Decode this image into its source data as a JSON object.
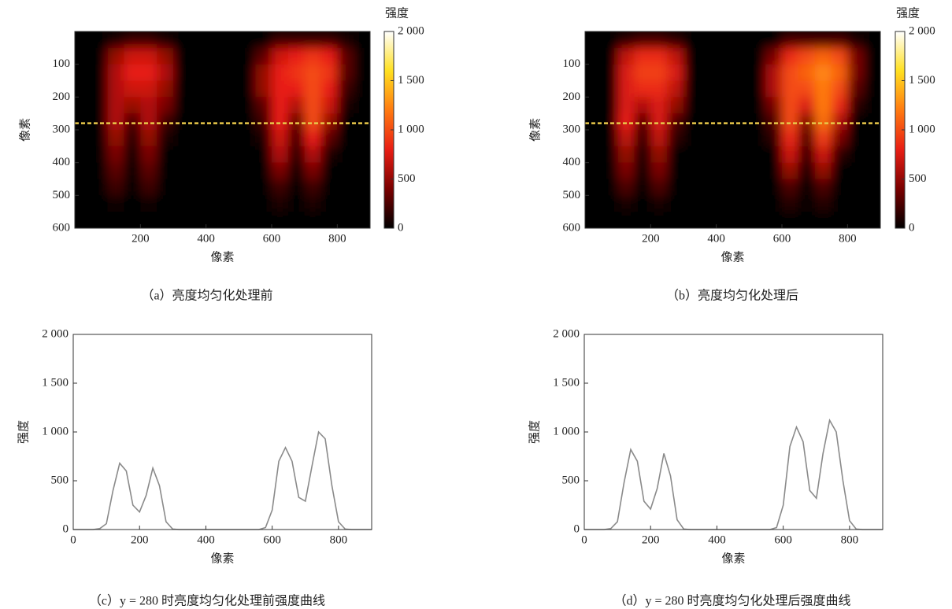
{
  "chart_data": [
    {
      "type": "heatmap",
      "caption": "（a）亮度均匀化处理前",
      "xlabel": "像素",
      "ylabel": "像素",
      "xlim": [
        0,
        900
      ],
      "xticks": [
        200,
        400,
        600,
        800
      ],
      "ylim": [
        0,
        600
      ],
      "y_inverted": true,
      "yticks": [
        100,
        200,
        300,
        400,
        500,
        600
      ],
      "x": [
        25,
        75,
        125,
        175,
        225,
        275,
        325,
        375,
        425,
        475,
        525,
        575,
        625,
        675,
        725,
        775,
        825,
        875
      ],
      "y": [
        25,
        75,
        125,
        175,
        225,
        275,
        325,
        375,
        425,
        475,
        525,
        575
      ],
      "z": [
        [
          0,
          0,
          100,
          200,
          200,
          100,
          0,
          0,
          0,
          0,
          0,
          0,
          200,
          200,
          200,
          200,
          100,
          0
        ],
        [
          0,
          0,
          500,
          700,
          700,
          500,
          0,
          0,
          0,
          0,
          0,
          300,
          700,
          800,
          900,
          800,
          300,
          0
        ],
        [
          0,
          0,
          600,
          800,
          800,
          600,
          0,
          0,
          0,
          0,
          0,
          500,
          800,
          900,
          1000,
          900,
          300,
          0
        ],
        [
          0,
          0,
          600,
          700,
          700,
          500,
          0,
          0,
          0,
          0,
          0,
          500,
          800,
          800,
          1000,
          800,
          200,
          0
        ],
        [
          0,
          0,
          600,
          500,
          600,
          400,
          0,
          0,
          0,
          0,
          0,
          300,
          800,
          600,
          1000,
          700,
          100,
          0
        ],
        [
          0,
          0,
          600,
          200,
          600,
          200,
          0,
          0,
          0,
          0,
          0,
          200,
          800,
          300,
          1000,
          500,
          0,
          0
        ],
        [
          0,
          0,
          500,
          100,
          500,
          100,
          0,
          0,
          0,
          0,
          0,
          100,
          700,
          200,
          800,
          300,
          0,
          0
        ],
        [
          0,
          0,
          400,
          0,
          400,
          0,
          0,
          0,
          0,
          0,
          0,
          0,
          600,
          100,
          600,
          100,
          0,
          0
        ],
        [
          0,
          0,
          300,
          0,
          300,
          0,
          0,
          0,
          0,
          0,
          0,
          0,
          400,
          0,
          400,
          0,
          0,
          0
        ],
        [
          0,
          0,
          200,
          0,
          200,
          0,
          0,
          0,
          0,
          0,
          0,
          0,
          200,
          0,
          200,
          0,
          0,
          0
        ],
        [
          0,
          0,
          50,
          0,
          50,
          0,
          0,
          0,
          0,
          0,
          0,
          0,
          100,
          0,
          100,
          0,
          0,
          0
        ],
        [
          0,
          0,
          0,
          0,
          0,
          0,
          0,
          0,
          0,
          0,
          0,
          0,
          0,
          0,
          0,
          0,
          0,
          0
        ]
      ],
      "hline": 280,
      "hline_color": "#e8c84a",
      "colormap": [
        "#000000",
        "#7a0000",
        "#e81e14",
        "#ff7a10",
        "#ffe020",
        "#ffffff"
      ],
      "colorbar": {
        "label": "强度",
        "lim": [
          0,
          2000
        ],
        "ticks": [
          0,
          500,
          {
            "value": 1000,
            "label": "1 000"
          },
          {
            "value": 1500,
            "label": "1 500"
          },
          {
            "value": 2000,
            "label": "2 000"
          }
        ]
      }
    },
    {
      "type": "heatmap",
      "caption": "（b）亮度均匀化处理后",
      "xlabel": "像素",
      "ylabel": "像素",
      "xlim": [
        0,
        900
      ],
      "xticks": [
        200,
        400,
        600,
        800
      ],
      "ylim": [
        0,
        600
      ],
      "y_inverted": true,
      "yticks": [
        100,
        200,
        300,
        400,
        500,
        600
      ],
      "x": [
        25,
        75,
        125,
        175,
        225,
        275,
        325,
        375,
        425,
        475,
        525,
        575,
        625,
        675,
        725,
        775,
        825,
        875
      ],
      "y": [
        25,
        75,
        125,
        175,
        225,
        275,
        325,
        375,
        425,
        475,
        525,
        575
      ],
      "z": [
        [
          0,
          0,
          150,
          250,
          250,
          150,
          0,
          0,
          0,
          0,
          0,
          0,
          250,
          250,
          250,
          250,
          100,
          0
        ],
        [
          0,
          0,
          650,
          850,
          850,
          650,
          0,
          0,
          0,
          0,
          0,
          400,
          850,
          1000,
          1100,
          1000,
          400,
          0
        ],
        [
          0,
          0,
          750,
          950,
          950,
          750,
          0,
          0,
          0,
          0,
          0,
          600,
          1000,
          1100,
          1250,
          1100,
          400,
          0
        ],
        [
          0,
          0,
          750,
          850,
          850,
          650,
          0,
          0,
          0,
          0,
          0,
          600,
          1000,
          1000,
          1200,
          1000,
          300,
          0
        ],
        [
          0,
          0,
          750,
          600,
          750,
          500,
          0,
          0,
          0,
          0,
          0,
          400,
          1000,
          750,
          1200,
          850,
          150,
          0
        ],
        [
          0,
          0,
          800,
          250,
          750,
          250,
          0,
          0,
          0,
          0,
          0,
          250,
          1000,
          400,
          1150,
          600,
          0,
          0
        ],
        [
          0,
          0,
          650,
          150,
          650,
          150,
          0,
          0,
          0,
          0,
          0,
          150,
          850,
          250,
          950,
          400,
          0,
          0
        ],
        [
          0,
          0,
          500,
          0,
          500,
          0,
          0,
          0,
          0,
          0,
          0,
          0,
          700,
          150,
          700,
          150,
          0,
          0
        ],
        [
          0,
          0,
          400,
          0,
          400,
          0,
          0,
          0,
          0,
          0,
          0,
          0,
          500,
          0,
          500,
          0,
          0,
          0
        ],
        [
          0,
          0,
          250,
          0,
          250,
          0,
          0,
          0,
          0,
          0,
          0,
          0,
          250,
          0,
          250,
          0,
          0,
          0
        ],
        [
          0,
          0,
          80,
          0,
          80,
          0,
          0,
          0,
          0,
          0,
          0,
          0,
          120,
          0,
          120,
          0,
          0,
          0
        ],
        [
          0,
          0,
          0,
          0,
          0,
          0,
          0,
          0,
          0,
          0,
          0,
          0,
          0,
          0,
          0,
          0,
          0,
          0
        ]
      ],
      "hline": 280,
      "hline_color": "#e8c84a",
      "colormap": [
        "#000000",
        "#7a0000",
        "#e81e14",
        "#ff7a10",
        "#ffe020",
        "#ffffff"
      ],
      "colorbar": {
        "label": "强度",
        "lim": [
          0,
          2000
        ],
        "ticks": [
          0,
          500,
          {
            "value": 1000,
            "label": "1 000"
          },
          {
            "value": 1500,
            "label": "1 500"
          },
          {
            "value": 2000,
            "label": "2 000"
          }
        ]
      }
    },
    {
      "type": "line",
      "caption": "（c）y = 280 时亮度均匀化处理前强度曲线",
      "xlabel": "像素",
      "ylabel": "强度",
      "xlim": [
        0,
        900
      ],
      "xticks": [
        0,
        200,
        400,
        600,
        800
      ],
      "ylim": [
        0,
        2000
      ],
      "yticks": [
        0,
        500,
        {
          "value": 1000,
          "label": "1 000"
        },
        {
          "value": 1500,
          "label": "1 500"
        },
        {
          "value": 2000,
          "label": "2 000"
        }
      ],
      "color": "#8a8a8a",
      "x": [
        0,
        20,
        40,
        60,
        80,
        100,
        120,
        140,
        160,
        180,
        200,
        220,
        240,
        260,
        280,
        300,
        320,
        340,
        360,
        380,
        400,
        420,
        440,
        460,
        480,
        500,
        520,
        540,
        560,
        580,
        600,
        620,
        640,
        660,
        680,
        700,
        720,
        740,
        760,
        780,
        800,
        820,
        840,
        860,
        880,
        900
      ],
      "values": [
        0,
        0,
        0,
        0,
        10,
        60,
        400,
        680,
        600,
        250,
        180,
        350,
        630,
        450,
        80,
        5,
        0,
        0,
        0,
        0,
        0,
        0,
        0,
        0,
        0,
        0,
        0,
        0,
        0,
        20,
        200,
        700,
        840,
        700,
        330,
        290,
        650,
        1000,
        930,
        450,
        80,
        5,
        0,
        0,
        0,
        0
      ]
    },
    {
      "type": "line",
      "caption": "（d）y = 280 时亮度均匀化处理后强度曲线",
      "xlabel": "像素",
      "ylabel": "强度",
      "xlim": [
        0,
        900
      ],
      "xticks": [
        0,
        200,
        400,
        600,
        800
      ],
      "ylim": [
        0,
        2000
      ],
      "yticks": [
        0,
        500,
        {
          "value": 1000,
          "label": "1 000"
        },
        {
          "value": 1500,
          "label": "1 500"
        },
        {
          "value": 2000,
          "label": "2 000"
        }
      ],
      "color": "#8a8a8a",
      "x": [
        0,
        20,
        40,
        60,
        80,
        100,
        120,
        140,
        160,
        180,
        200,
        220,
        240,
        260,
        280,
        300,
        320,
        340,
        360,
        380,
        400,
        420,
        440,
        460,
        480,
        500,
        520,
        540,
        560,
        580,
        600,
        620,
        640,
        660,
        680,
        700,
        720,
        740,
        760,
        780,
        800,
        820,
        840,
        860,
        880,
        900
      ],
      "values": [
        0,
        0,
        0,
        0,
        10,
        80,
        480,
        820,
        700,
        290,
        210,
        420,
        780,
        550,
        100,
        5,
        0,
        0,
        0,
        0,
        0,
        0,
        0,
        0,
        0,
        0,
        0,
        0,
        0,
        20,
        250,
        850,
        1050,
        900,
        400,
        320,
        780,
        1120,
        1000,
        500,
        90,
        5,
        0,
        0,
        0,
        0
      ]
    }
  ]
}
